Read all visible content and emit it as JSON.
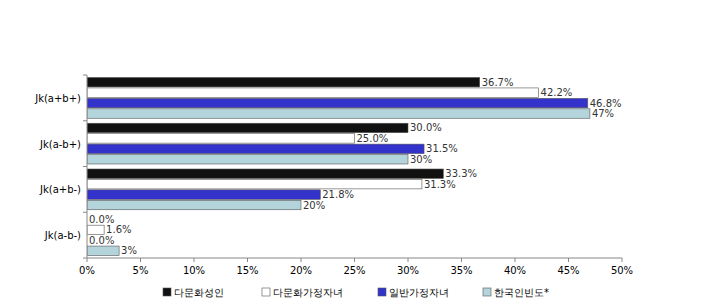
{
  "chart_data": {
    "type": "bar",
    "orientation": "horizontal",
    "categories": [
      "Jk(a+b+)",
      "Jk(a-b+)",
      "Jk(a+b-)",
      "Jk(a-b-)"
    ],
    "series": [
      {
        "name": "다문화성인",
        "color": "#111111",
        "values": [
          36.7,
          30.0,
          33.3,
          0.0
        ],
        "value_labels": [
          "36.7%",
          "30.0%",
          "33.3%",
          "0.0%"
        ]
      },
      {
        "name": "다문화가정자녀",
        "color": "#ffffff",
        "values": [
          42.2,
          25.0,
          31.3,
          1.6
        ],
        "value_labels": [
          "42.2%",
          "25.0%",
          "31.3%",
          "1.6%"
        ]
      },
      {
        "name": "일반가정자녀",
        "color": "#3333cc",
        "values": [
          46.8,
          31.5,
          21.8,
          0.0
        ],
        "value_labels": [
          "46.8%",
          "31.5%",
          "21.8%",
          "0.0%"
        ]
      },
      {
        "name": "한국인빈도*",
        "color": "#b4d4dc",
        "values": [
          47,
          30,
          20,
          3
        ],
        "value_labels": [
          "47%",
          "30%",
          "20%",
          "3%"
        ]
      }
    ],
    "xlim": [
      0,
      50
    ],
    "xticks": [
      {
        "value": 0,
        "label": "0%"
      },
      {
        "value": 5,
        "label": "5%"
      },
      {
        "value": 10,
        "label": "10%"
      },
      {
        "value": 15,
        "label": "15%"
      },
      {
        "value": 20,
        "label": "20%"
      },
      {
        "value": 25,
        "label": "25%"
      },
      {
        "value": 30,
        "label": "30%"
      },
      {
        "value": 35,
        "label": "35%"
      },
      {
        "value": 40,
        "label": "40%"
      },
      {
        "value": 45,
        "label": "45%"
      },
      {
        "value": 50,
        "label": "50%"
      }
    ],
    "grid": false,
    "data_labels": true,
    "legend": "bottom"
  }
}
